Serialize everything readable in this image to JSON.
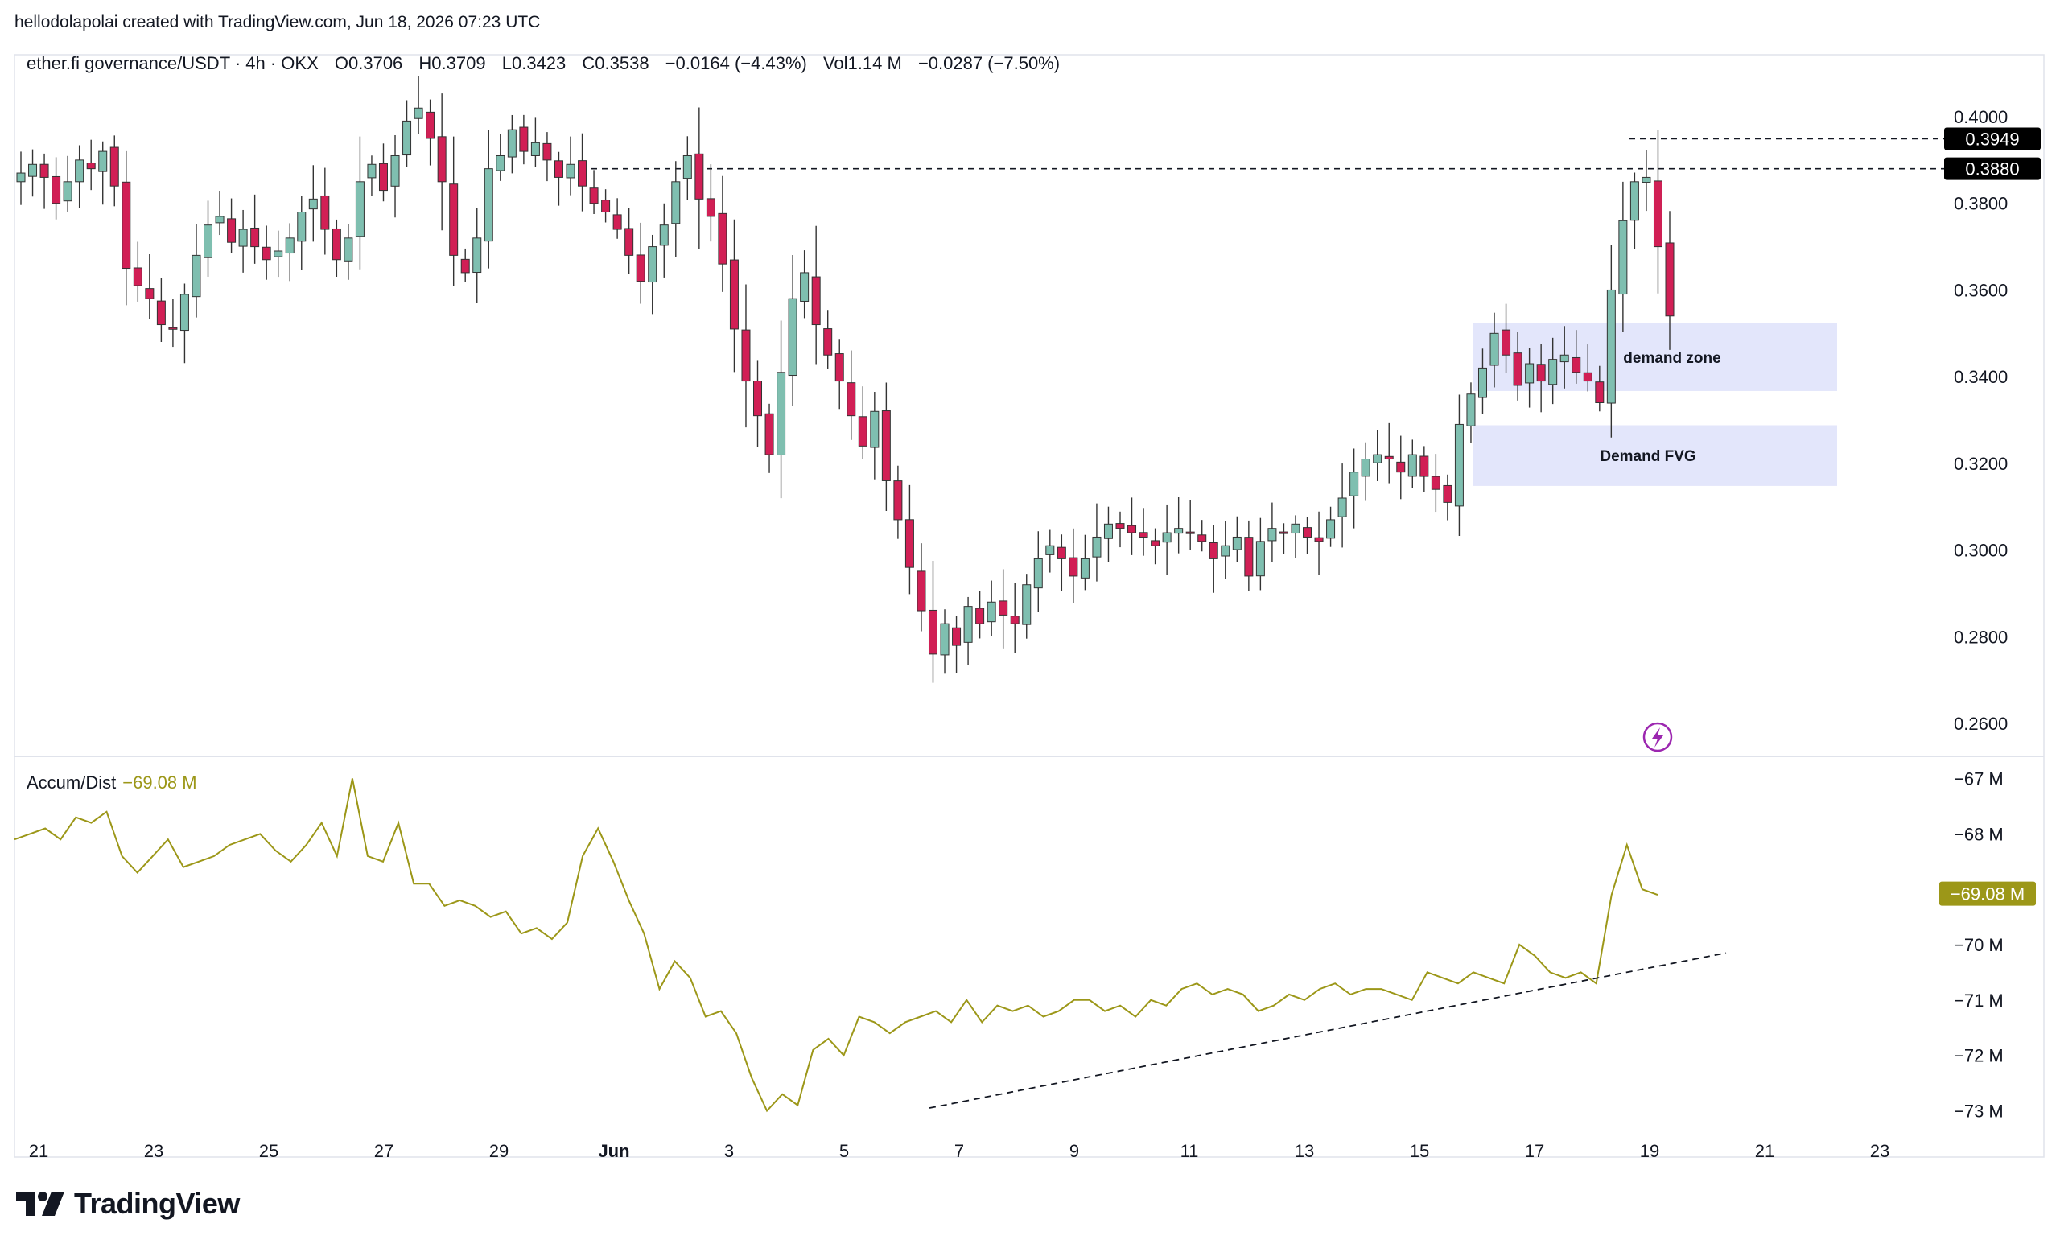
{
  "header": {
    "credit": "hellodolapolai created with TradingView.com, Jun 18, 2026 07:23 UTC"
  },
  "legend": {
    "symbol": "ether.fi governance/USDT · 4h · OKX",
    "open": "O0.3706",
    "high": "H0.3709",
    "low": "L0.3423",
    "close": "C0.3538",
    "change": "−0.0164 (−4.43%)",
    "volume": "Vol1.14 M",
    "vol_change": "−0.0287 (−7.50%)"
  },
  "indicator": {
    "name": "Accum/Dist",
    "value": "−69.08 M"
  },
  "brand": {
    "name": "TradingView"
  },
  "colors": {
    "up": "#7fbfb0",
    "down": "#d11f55",
    "ad": "#9c9718",
    "zone": "#e3e6fb",
    "tag": "#000000"
  },
  "chart_data": [
    {
      "type": "candlestick",
      "title": "ether.fi governance/USDT · 4h · OKX",
      "x_axis_ticks": [
        "21",
        "23",
        "25",
        "27",
        "29",
        "Jun",
        "3",
        "5",
        "7",
        "9",
        "11",
        "13",
        "15",
        "17",
        "19",
        "21",
        "23"
      ],
      "y_axis_ticks": [
        "0.4000",
        "0.3800",
        "0.3600",
        "0.3400",
        "0.3200",
        "0.3000",
        "0.2800",
        "0.2600"
      ],
      "ylim": [
        0.2524,
        0.4143
      ],
      "price_tags": [
        "0.3949",
        "0.3880"
      ],
      "horizontal_lines": [
        0.388,
        0.3949
      ],
      "zones": [
        {
          "label": "demand zone",
          "y_range": [
            0.3367,
            0.3523
          ],
          "x_range": [
            "Jun 15",
            "Jun 21"
          ]
        },
        {
          "label": "Demand FVG",
          "y_range": [
            0.3148,
            0.3288
          ],
          "x_range": [
            "Jun 15",
            "Jun 21"
          ]
        }
      ],
      "last_candle": {
        "open": 0.3706,
        "high": 0.3709,
        "low": 0.3423,
        "close": 0.3538
      },
      "series_ohlc_anchor_closes": [
        0.387,
        0.389,
        0.386,
        0.38,
        0.385,
        0.39,
        0.388,
        0.392,
        0.384,
        0.365,
        0.361,
        0.358,
        0.352,
        0.351,
        0.359,
        0.368,
        0.375,
        0.377,
        0.371,
        0.374,
        0.37,
        0.367,
        0.369,
        0.372,
        0.378,
        0.381,
        0.374,
        0.367,
        0.372,
        0.385,
        0.389,
        0.383,
        0.391,
        0.399,
        0.402,
        0.395,
        0.385,
        0.368,
        0.364,
        0.372,
        0.388,
        0.391,
        0.397,
        0.392,
        0.394,
        0.39,
        0.386,
        0.389,
        0.384,
        0.38,
        0.378,
        0.374,
        0.368,
        0.362,
        0.37,
        0.375,
        0.385,
        0.391,
        0.381,
        0.377,
        0.366,
        0.351,
        0.339,
        0.331,
        0.322,
        0.341,
        0.358,
        0.364,
        0.352,
        0.345,
        0.339,
        0.331,
        0.324,
        0.332,
        0.316,
        0.307,
        0.296,
        0.286,
        0.276,
        0.283,
        0.278,
        0.287,
        0.283,
        0.288,
        0.285,
        0.283,
        0.292,
        0.298,
        0.301,
        0.298,
        0.294,
        0.298,
        0.303,
        0.306,
        0.305,
        0.304,
        0.303,
        0.301,
        0.304,
        0.305,
        0.304,
        0.302,
        0.298,
        0.301,
        0.303,
        0.294,
        0.302,
        0.305,
        0.304,
        0.306,
        0.303,
        0.302,
        0.307,
        0.312,
        0.318,
        0.321,
        0.322,
        0.321,
        0.318,
        0.322,
        0.317,
        0.314,
        0.311,
        0.329,
        0.336,
        0.342,
        0.35,
        0.345,
        0.338,
        0.343,
        0.339,
        0.344,
        0.345,
        0.341,
        0.339,
        0.334,
        0.36,
        0.376,
        0.385,
        0.386,
        0.37,
        0.354
      ]
    },
    {
      "type": "line",
      "name": "Accum/Dist",
      "y_axis_ticks": [
        "−67 M",
        "−68 M",
        "−70 M",
        "−71 M",
        "−72 M",
        "−73 M"
      ],
      "ylim": [
        -73.4,
        -66.6
      ],
      "last_value_tag": "−69.08 M",
      "values": [
        -68.1,
        -68.0,
        -67.9,
        -68.1,
        -67.7,
        -67.8,
        -67.6,
        -68.4,
        -68.7,
        -68.4,
        -68.1,
        -68.6,
        -68.5,
        -68.4,
        -68.2,
        -68.1,
        -68.0,
        -68.3,
        -68.5,
        -68.2,
        -67.8,
        -68.4,
        -67.0,
        -68.4,
        -68.5,
        -67.8,
        -68.9,
        -68.9,
        -69.3,
        -69.2,
        -69.3,
        -69.5,
        -69.4,
        -69.8,
        -69.7,
        -69.9,
        -69.6,
        -68.4,
        -67.9,
        -68.5,
        -69.2,
        -69.8,
        -70.8,
        -70.3,
        -70.6,
        -71.3,
        -71.2,
        -71.6,
        -72.4,
        -73.0,
        -72.7,
        -72.9,
        -71.9,
        -71.7,
        -72.0,
        -71.3,
        -71.4,
        -71.6,
        -71.4,
        -71.3,
        -71.2,
        -71.4,
        -71.0,
        -71.4,
        -71.1,
        -71.2,
        -71.1,
        -71.3,
        -71.2,
        -71.0,
        -71.0,
        -71.2,
        -71.1,
        -71.3,
        -71.0,
        -71.1,
        -70.8,
        -70.7,
        -70.9,
        -70.8,
        -70.9,
        -71.2,
        -71.1,
        -70.9,
        -71.0,
        -70.8,
        -70.7,
        -70.9,
        -70.8,
        -70.8,
        -70.9,
        -71.0,
        -70.5,
        -70.6,
        -70.7,
        -70.5,
        -70.6,
        -70.7,
        -70.0,
        -70.2,
        -70.5,
        -70.6,
        -70.5,
        -70.7,
        -69.1,
        -68.2,
        -69.0,
        -69.1
      ]
    }
  ]
}
